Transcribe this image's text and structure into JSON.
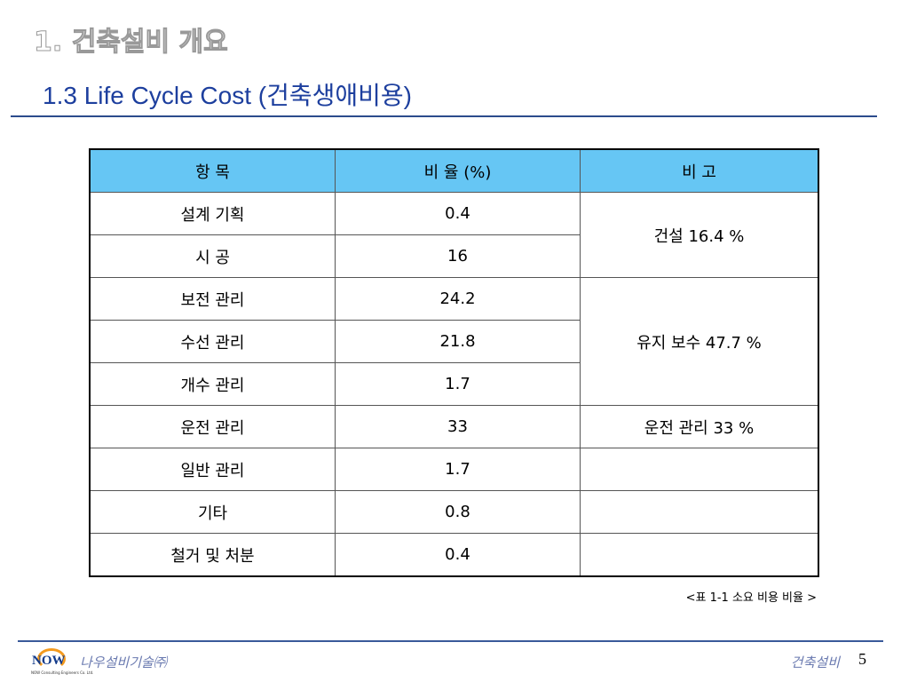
{
  "header": {
    "section": "1. 건축설비 개요",
    "title": "1.3 Life Cycle Cost (건축생애비용)"
  },
  "table": {
    "columns": [
      "항 목",
      "비 율 (%)",
      "비 고"
    ],
    "rows": [
      [
        "설계 기획",
        0.4
      ],
      [
        "시 공",
        16
      ],
      [
        "보전 관리",
        24.2
      ],
      [
        "수선 관리",
        21.8
      ],
      [
        "개수 관리",
        1.7
      ],
      [
        "운전 관리",
        33
      ],
      [
        "일반 관리",
        1.7
      ],
      [
        "기타",
        0.8
      ],
      [
        "철거 및 처분",
        0.4
      ]
    ],
    "notes": [
      "건설 16.4 %",
      "유지 보수 47.7 %",
      "운전 관리 33 %"
    ],
    "caption": "<표 1-1 소요 비용 비율 >"
  },
  "footer": {
    "logo": "NOW",
    "logo_sub": "NOW Consulting Engineers Co. Ltd.",
    "company": "나우설비기술㈜",
    "topic": "건축설비",
    "page": 5
  }
}
